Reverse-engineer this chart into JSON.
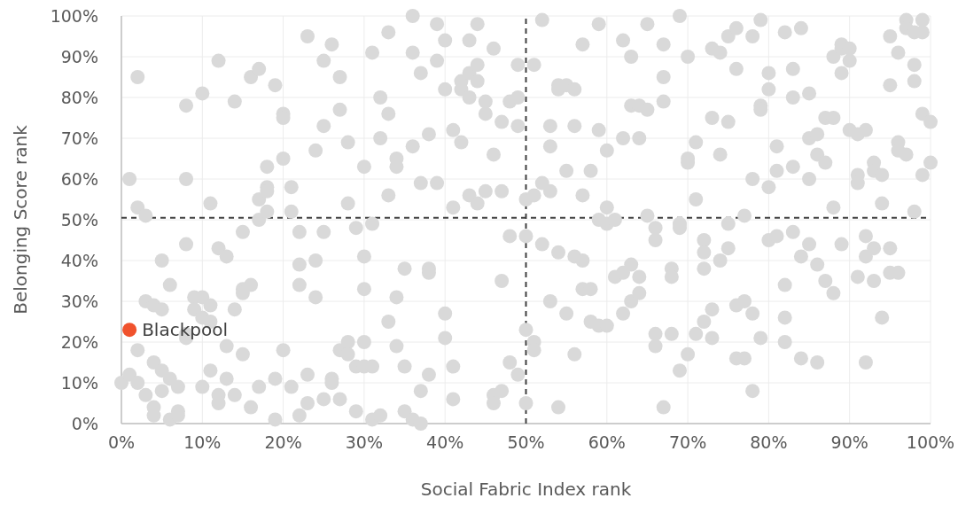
{
  "chart_data": {
    "type": "scatter",
    "xlabel": "Social Fabric Index rank",
    "ylabel": "Belonging Score rank",
    "xlim": [
      0,
      100
    ],
    "ylim": [
      0,
      100
    ],
    "xticks": [
      {
        "value": 0,
        "label": "0%"
      },
      {
        "value": 10,
        "label": "10%"
      },
      {
        "value": 20,
        "label": "20%"
      },
      {
        "value": 30,
        "label": "30%"
      },
      {
        "value": 40,
        "label": "40%"
      },
      {
        "value": 50,
        "label": "50%"
      },
      {
        "value": 60,
        "label": "60%"
      },
      {
        "value": 70,
        "label": "70%"
      },
      {
        "value": 80,
        "label": "80%"
      },
      {
        "value": 90,
        "label": "90%"
      },
      {
        "value": 100,
        "label": "100%"
      }
    ],
    "yticks": [
      {
        "value": 0,
        "label": "0%"
      },
      {
        "value": 10,
        "label": "10%"
      },
      {
        "value": 20,
        "label": "20%"
      },
      {
        "value": 30,
        "label": "30%"
      },
      {
        "value": 40,
        "label": "40%"
      },
      {
        "value": 50,
        "label": "50%"
      },
      {
        "value": 60,
        "label": "60%"
      },
      {
        "value": 70,
        "label": "70%"
      },
      {
        "value": 80,
        "label": "80%"
      },
      {
        "value": 90,
        "label": "90%"
      },
      {
        "value": 100,
        "label": "100%"
      }
    ],
    "grid": true,
    "legend": false,
    "marker": "circle",
    "ref_lines": [
      {
        "axis": "x",
        "value": 50,
        "color": "#404040",
        "line_style": "dashed"
      },
      {
        "axis": "y",
        "value": 50.5,
        "color": "#404040",
        "line_style": "dashed"
      }
    ],
    "series": [
      {
        "color": "#d9d9d9",
        "x": [
          0,
          1,
          1,
          2,
          2,
          2,
          2,
          3,
          3,
          3,
          4,
          4,
          4,
          4,
          5,
          5,
          5,
          5,
          6,
          6,
          6,
          7,
          7,
          7,
          8,
          8,
          8,
          8,
          8,
          9,
          9,
          10,
          10,
          10,
          10,
          11,
          11,
          11,
          11,
          12,
          12,
          12,
          12,
          13,
          13,
          13,
          14,
          14,
          14,
          15,
          15,
          15,
          15,
          16,
          16,
          16,
          17,
          17,
          17,
          17,
          18,
          18,
          18,
          18,
          19,
          19,
          19,
          20,
          20,
          20,
          20,
          21,
          21,
          21,
          22,
          22,
          22,
          22,
          23,
          23,
          23,
          24,
          24,
          24,
          25,
          25,
          25,
          25,
          26,
          26,
          26,
          27,
          27,
          27,
          27,
          28,
          28,
          28,
          28,
          29,
          29,
          29,
          30,
          30,
          30,
          30,
          30,
          31,
          31,
          31,
          31,
          32,
          32,
          32,
          33,
          33,
          33,
          33,
          34,
          34,
          34,
          34,
          35,
          35,
          35,
          36,
          36,
          36,
          36,
          37,
          37,
          37,
          37,
          38,
          38,
          38,
          38,
          39,
          39,
          39,
          40,
          40,
          40,
          40,
          41,
          41,
          41,
          41,
          42,
          42,
          42,
          43,
          43,
          43,
          43,
          44,
          44,
          44,
          44,
          45,
          45,
          45,
          46,
          46,
          46,
          46,
          47,
          47,
          47,
          47,
          48,
          48,
          48,
          49,
          49,
          49,
          49,
          50,
          50,
          50,
          50,
          51,
          51,
          51,
          51,
          52,
          52,
          52,
          53,
          53,
          53,
          53,
          54,
          54,
          54,
          54,
          55,
          55,
          55,
          56,
          56,
          56,
          56,
          57,
          57,
          57,
          57,
          58,
          58,
          58,
          59,
          59,
          59,
          59,
          60,
          60,
          60,
          60,
          61,
          61,
          62,
          62,
          62,
          62,
          63,
          63,
          63,
          63,
          64,
          64,
          64,
          64,
          65,
          65,
          65,
          66,
          66,
          66,
          66,
          67,
          67,
          67,
          67,
          68,
          68,
          68,
          69,
          69,
          69,
          69,
          70,
          70,
          70,
          70,
          71,
          71,
          71,
          72,
          72,
          72,
          72,
          73,
          73,
          73,
          73,
          74,
          74,
          74,
          75,
          75,
          75,
          75,
          76,
          76,
          76,
          76,
          77,
          77,
          77,
          78,
          78,
          78,
          78,
          79,
          79,
          79,
          79,
          80,
          80,
          80,
          80,
          81,
          81,
          81,
          82,
          82,
          82,
          82,
          83,
          83,
          83,
          83,
          84,
          84,
          84,
          85,
          85,
          85,
          85,
          86,
          86,
          86,
          86,
          87,
          87,
          87,
          88,
          88,
          88,
          88,
          89,
          89,
          89,
          89,
          90,
          90,
          90,
          91,
          91,
          91,
          91,
          92,
          92,
          92,
          92,
          93,
          93,
          93,
          93,
          94,
          94,
          94,
          95,
          95,
          95,
          95,
          96,
          96,
          96,
          96,
          97,
          97,
          97,
          98,
          98,
          98,
          98,
          99,
          99,
          99,
          99,
          100,
          100
        ],
        "values": [
          10,
          60,
          12,
          85,
          53,
          18,
          10,
          51,
          30,
          7,
          29,
          15,
          4,
          2,
          40,
          28,
          13,
          8,
          34,
          11,
          1,
          9,
          3,
          2,
          78,
          60,
          44,
          22,
          21,
          31,
          28,
          81,
          31,
          26,
          9,
          54,
          29,
          25,
          13,
          89,
          43,
          7,
          5,
          41,
          19,
          11,
          79,
          28,
          7,
          47,
          33,
          32,
          17,
          85,
          34,
          4,
          87,
          55,
          50,
          9,
          63,
          58,
          57,
          52,
          83,
          11,
          1,
          76,
          75,
          65,
          18,
          58,
          52,
          9,
          47,
          39,
          34,
          2,
          95,
          12,
          5,
          67,
          40,
          31,
          89,
          73,
          47,
          6,
          93,
          11,
          10,
          85,
          77,
          18,
          6,
          69,
          54,
          20,
          17,
          48,
          14,
          3,
          63,
          41,
          33,
          20,
          14,
          91,
          49,
          14,
          1,
          80,
          70,
          2,
          96,
          76,
          56,
          25,
          65,
          63,
          31,
          19,
          38,
          14,
          3,
          100,
          91,
          68,
          1,
          86,
          59,
          8,
          0,
          71,
          38,
          37,
          12,
          98,
          89,
          59,
          94,
          82,
          27,
          21,
          72,
          53,
          14,
          6,
          84,
          82,
          69,
          94,
          86,
          80,
          56,
          98,
          88,
          84,
          54,
          79,
          76,
          57,
          92,
          66,
          7,
          5,
          74,
          57,
          35,
          8,
          79,
          46,
          15,
          88,
          80,
          73,
          12,
          55,
          46,
          23,
          5,
          88,
          56,
          20,
          18,
          99,
          59,
          44,
          73,
          68,
          57,
          30,
          83,
          82,
          42,
          4,
          83,
          62,
          27,
          82,
          73,
          41,
          17,
          93,
          56,
          40,
          33,
          62,
          33,
          25,
          98,
          72,
          50,
          24,
          67,
          53,
          49,
          24,
          50,
          36,
          94,
          70,
          37,
          27,
          90,
          78,
          39,
          30,
          78,
          70,
          36,
          32,
          98,
          77,
          51,
          48,
          45,
          22,
          19,
          93,
          85,
          79,
          4,
          38,
          36,
          22,
          100,
          49,
          48,
          13,
          90,
          65,
          64,
          17,
          69,
          55,
          22,
          45,
          42,
          38,
          25,
          92,
          75,
          28,
          21,
          91,
          66,
          40,
          95,
          74,
          49,
          43,
          97,
          87,
          29,
          16,
          51,
          30,
          16,
          95,
          60,
          27,
          8,
          99,
          78,
          77,
          21,
          86,
          82,
          58,
          45,
          68,
          62,
          46,
          96,
          34,
          26,
          20,
          87,
          80,
          63,
          47,
          97,
          41,
          16,
          81,
          70,
          60,
          44,
          71,
          66,
          39,
          15,
          75,
          64,
          35,
          90,
          75,
          53,
          32,
          93,
          92,
          86,
          44,
          92,
          89,
          72,
          71,
          61,
          59,
          36,
          72,
          46,
          41,
          15,
          64,
          62,
          43,
          35,
          61,
          54,
          26,
          95,
          83,
          43,
          37,
          91,
          69,
          67,
          37,
          99,
          97,
          66,
          96,
          88,
          84,
          52,
          99,
          96,
          76,
          61,
          74,
          64
        ]
      },
      {
        "name": "Blackpool",
        "color": "#f0522d",
        "x": [
          1
        ],
        "values": [
          23
        ]
      }
    ]
  }
}
